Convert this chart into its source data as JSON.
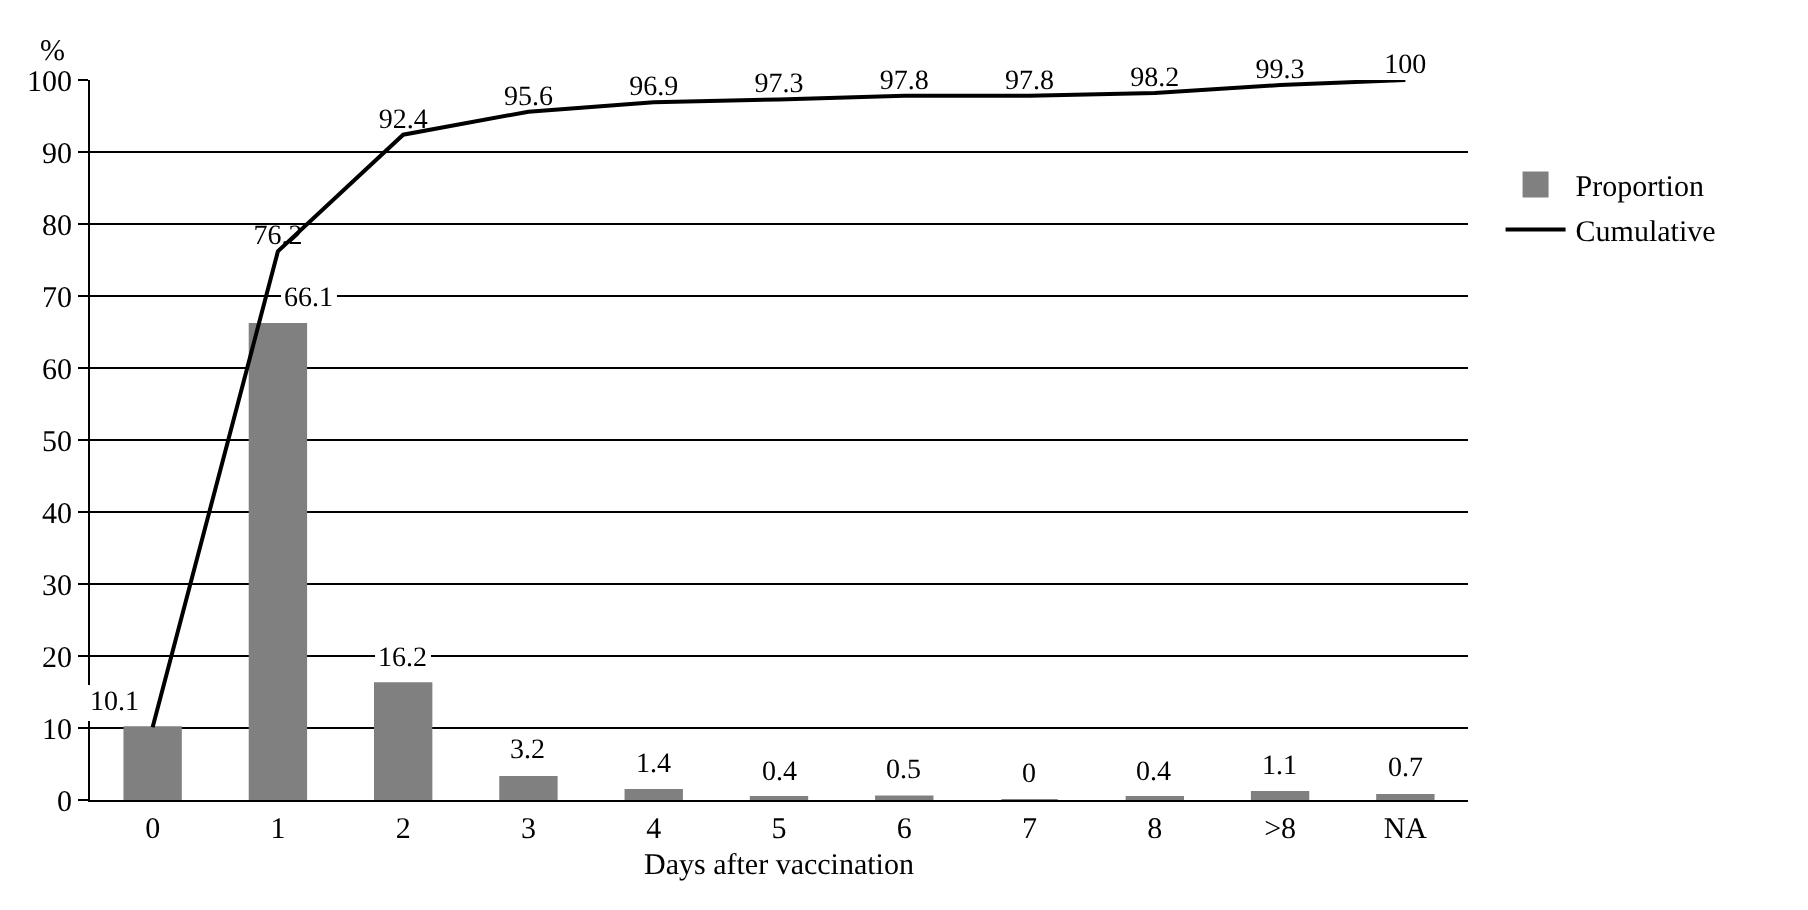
{
  "chart_data": {
    "type": "bar",
    "xlabel": "Days after vaccination",
    "ylabel": "%",
    "categories": [
      "0",
      "1",
      "2",
      "3",
      "4",
      "5",
      "6",
      "7",
      "8",
      ">8",
      "NA"
    ],
    "series": [
      {
        "name": "Proportion",
        "color": "#808080",
        "values": [
          10.1,
          66.1,
          16.2,
          3.2,
          1.4,
          0.4,
          0.5,
          0,
          0.4,
          1.1,
          0.7
        ],
        "value_labels": [
          "10.1",
          "66.1",
          "16.2",
          "3.2",
          "1.4",
          "0.4",
          "0.5",
          "0",
          "0.4",
          "1.1",
          "0.7"
        ]
      },
      {
        "name": "Cumulative",
        "type": "line",
        "color": "#000000",
        "values": [
          10.1,
          76.2,
          92.4,
          95.6,
          96.9,
          97.3,
          97.8,
          97.8,
          98.2,
          99.3,
          100
        ],
        "value_labels": [
          null,
          "76.2",
          "92.4",
          "95.6",
          "96.9",
          "97.3",
          "97.8",
          "97.8",
          "98.2",
          "99.3",
          "100"
        ]
      }
    ],
    "ylim": [
      0,
      100
    ],
    "yticks": [
      0,
      10,
      20,
      30,
      40,
      50,
      60,
      70,
      80,
      90,
      100
    ],
    "grid": "y",
    "legend": "right",
    "marker": "none",
    "line_style": "solid"
  }
}
